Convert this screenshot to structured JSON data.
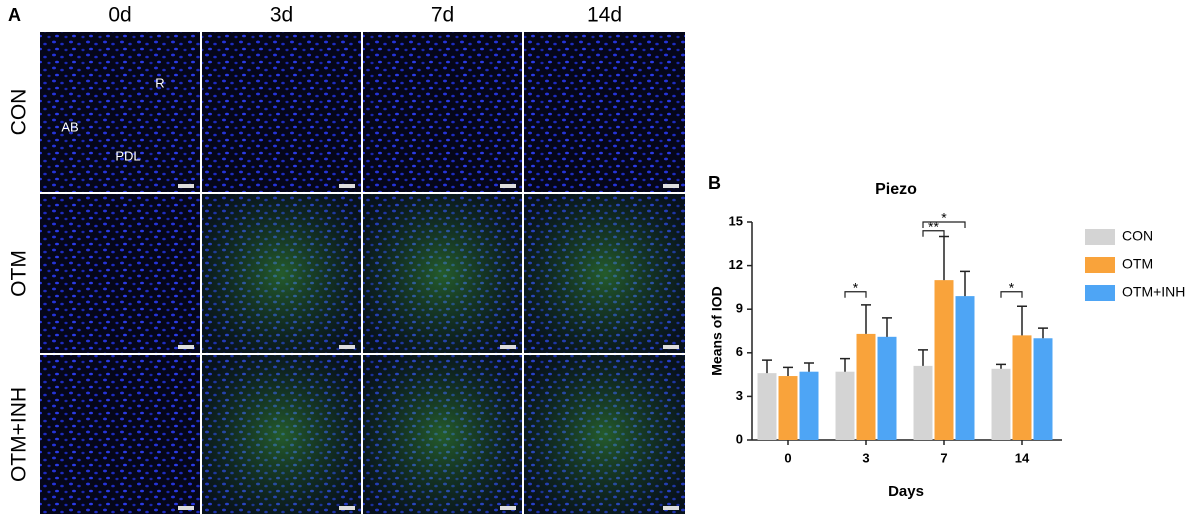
{
  "panel_a": {
    "label": "A",
    "columns": [
      "0d",
      "3d",
      "7d",
      "14d"
    ],
    "rows": [
      "CON",
      "OTM",
      "OTM+INH"
    ],
    "region_labels": [
      "AB",
      "PDL",
      "R"
    ]
  },
  "chart_data": {
    "type": "bar",
    "panel_label": "B",
    "title": "Piezo",
    "x_label": "Days",
    "y_label": "Means of IOD",
    "categories": [
      "0",
      "3",
      "7",
      "14"
    ],
    "series": [
      {
        "name": "CON",
        "color": "#d4d4d4",
        "values": [
          4.6,
          4.7,
          5.1,
          4.9
        ],
        "errors": [
          0.9,
          0.9,
          1.1,
          0.3
        ]
      },
      {
        "name": "OTM",
        "color": "#f9a33b",
        "values": [
          4.4,
          7.3,
          11.0,
          7.2
        ],
        "errors": [
          0.6,
          2.0,
          3.0,
          2.0
        ]
      },
      {
        "name": "OTM+INH",
        "color": "#4ea5f5",
        "values": [
          4.7,
          7.1,
          9.9,
          7.0
        ],
        "errors": [
          0.6,
          1.3,
          1.7,
          0.7
        ]
      }
    ],
    "ylim": [
      0,
      15
    ],
    "yticks": [
      0,
      3,
      6,
      9,
      12,
      15
    ],
    "legend": "right",
    "annotations": [
      {
        "text": "*",
        "category": "3",
        "between": [
          "CON",
          "OTM"
        ],
        "y": 10.2
      },
      {
        "text": "**",
        "category": "7",
        "between": [
          "CON",
          "OTM"
        ],
        "y": 14.4
      },
      {
        "text": "*",
        "category": "7",
        "between": [
          "CON",
          "OTM+INH"
        ],
        "y": 15.0
      },
      {
        "text": "*",
        "category": "14",
        "between": [
          "CON",
          "OTM"
        ],
        "y": 10.2
      }
    ]
  }
}
